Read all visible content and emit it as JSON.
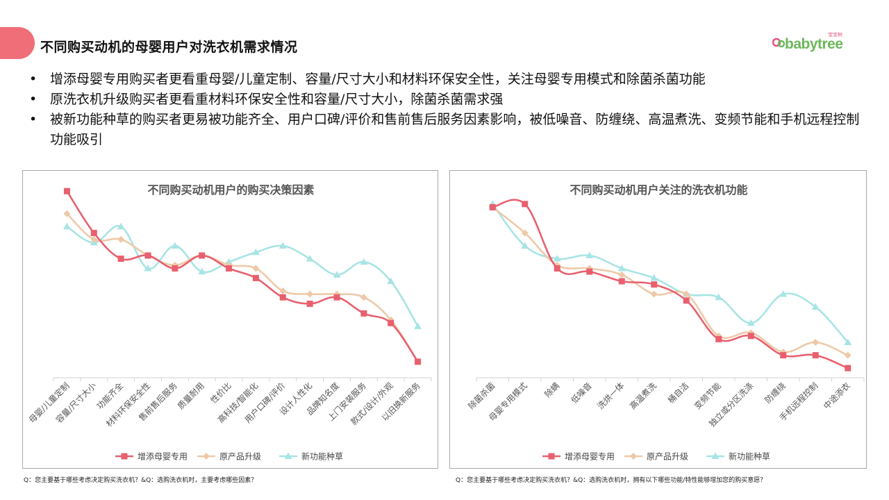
{
  "header": {
    "title": "不同购买动机的母婴用户对洗衣机需求情况",
    "logo_text": "babytree",
    "logo_sub": "宝宝树"
  },
  "bullets": [
    "增添母婴专用购买者更看重母婴/儿童定制、容量/尺寸大小和材料环保安全性，关注母婴专用模式和除菌杀菌功能",
    "原洗衣机升级购买者更看重材料环保安全性和容量/尺寸大小，除菌杀菌需求强",
    "被新功能种草的购买者更易被功能齐全、用户口碑/评价和售前售后服务因素影响，被低噪音、防缠绕、高温煮洗、变频节能和手机远程控制功能吸引"
  ],
  "colors": {
    "series1": "#e8606e",
    "series2": "#eec9a8",
    "series3": "#a8e4e4",
    "accent": "#f06e78",
    "axis": "#d0d0d0"
  },
  "chart_data": [
    {
      "type": "line",
      "title": "不同购买动机用户的购买决策因素",
      "categories": [
        "母婴/儿童定制",
        "容量/尺寸大小",
        "功能齐全",
        "材料环保安全性",
        "售前售后服务",
        "质量耐用",
        "性价比",
        "高科技/智能化",
        "用户口碑/评价",
        "设计人性化",
        "品牌知名度",
        "上门安装服务",
        "款式/设计/外观",
        "以旧换新服务"
      ],
      "series": [
        {
          "name": "增添母婴专用",
          "marker": "square",
          "values": [
            58,
            45,
            37,
            38,
            34,
            38,
            34,
            31,
            25,
            23,
            25,
            20,
            17,
            5
          ]
        },
        {
          "name": "原产品升级",
          "marker": "diamond",
          "values": [
            51,
            43,
            43,
            38,
            35,
            38,
            35,
            34,
            27,
            26,
            26,
            25,
            18,
            5
          ]
        },
        {
          "name": "新功能种草",
          "marker": "triangle",
          "values": [
            47,
            42,
            47,
            34,
            41,
            33,
            36,
            39,
            41,
            37,
            32,
            36,
            30,
            16
          ]
        }
      ],
      "ylim": [
        0,
        60
      ],
      "legend": "bottom",
      "grid": false,
      "footnote": "Q：您主要基于哪些考虑决定购买洗衣机？&Q：选购洗衣机时，主要考虑哪些因素？"
    },
    {
      "type": "line",
      "title": "不同购买动机用户关注的洗衣机功能",
      "categories": [
        "除菌杀菌",
        "母婴专用模式",
        "除螨",
        "低噪音",
        "洗烘一体",
        "高温煮洗",
        "桶自洁",
        "变频节能",
        "独立或分区洗涤",
        "防缠绕",
        "手机远程控制",
        "中途添衣"
      ],
      "series": [
        {
          "name": "增添母婴专用",
          "marker": "square",
          "values": [
            53,
            54,
            34,
            33,
            30,
            29,
            24,
            12,
            13,
            7,
            7,
            3
          ]
        },
        {
          "name": "原产品升级",
          "marker": "diamond",
          "values": [
            53,
            45,
            35,
            34,
            32,
            26,
            26,
            13,
            14,
            8,
            11,
            7
          ]
        },
        {
          "name": "新功能种草",
          "marker": "triangle",
          "values": [
            54,
            41,
            37,
            38,
            34,
            31,
            26,
            25,
            17,
            26,
            22,
            11
          ]
        }
      ],
      "ylim": [
        0,
        60
      ],
      "legend": "bottom",
      "grid": false,
      "footnote": "Q：您主要基于哪些考虑决定购买洗衣机？&Q：选购洗衣机时，拥有以下哪些功能/特性能够增加您的购买意愿？"
    }
  ]
}
